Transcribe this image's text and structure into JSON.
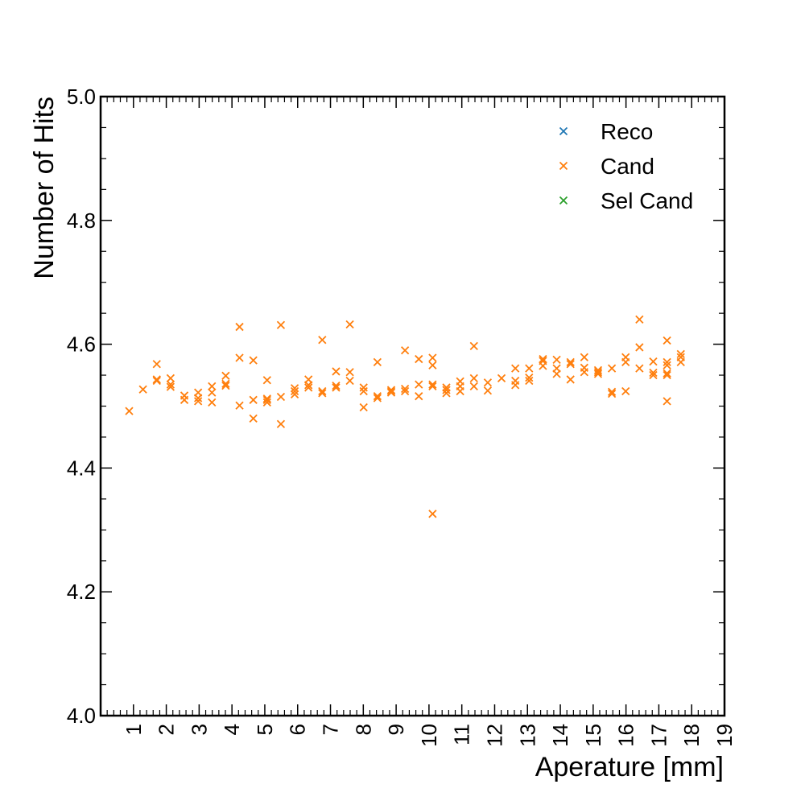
{
  "chart_data": {
    "type": "scatter",
    "xlabel": "Aperature [mm]",
    "ylabel": "Number of Hits",
    "xlim": [
      0,
      19
    ],
    "ylim": [
      4.0,
      5.0
    ],
    "x_ticks": [
      1,
      2,
      3,
      4,
      5,
      6,
      7,
      8,
      9,
      10,
      11,
      12,
      13,
      14,
      15,
      16,
      17,
      18,
      19
    ],
    "x_tick_labels": [
      "1",
      "2",
      "3",
      "4",
      "5",
      "6",
      "7",
      "8",
      "9",
      "10",
      "11",
      "12",
      "13",
      "14",
      "15",
      "16",
      "17",
      "18",
      "19"
    ],
    "y_ticks": [
      4.0,
      4.2,
      4.4,
      4.6,
      4.8,
      5.0
    ],
    "y_tick_labels": [
      "4.0",
      "4.2",
      "4.4",
      "4.6",
      "4.8",
      "5.0"
    ],
    "grid": false,
    "legend_position": "top-right",
    "marker": "x",
    "series": [
      {
        "name": "Reco",
        "color": "#1f77b4",
        "points": []
      },
      {
        "name": "Cand",
        "color": "#ff7f0e",
        "points": [
          [
            0.87,
            4.492
          ],
          [
            1.29,
            4.527
          ],
          [
            1.71,
            4.568
          ],
          [
            1.71,
            4.543
          ],
          [
            1.71,
            4.541
          ],
          [
            2.13,
            4.545
          ],
          [
            2.13,
            4.535
          ],
          [
            2.13,
            4.531
          ],
          [
            2.55,
            4.517
          ],
          [
            2.55,
            4.51
          ],
          [
            2.97,
            4.522
          ],
          [
            2.97,
            4.513
          ],
          [
            2.97,
            4.508
          ],
          [
            3.39,
            4.532
          ],
          [
            3.39,
            4.522
          ],
          [
            3.39,
            4.506
          ],
          [
            3.81,
            4.549
          ],
          [
            3.81,
            4.536
          ],
          [
            3.81,
            4.533
          ],
          [
            4.23,
            4.628
          ],
          [
            4.23,
            4.578
          ],
          [
            4.23,
            4.501
          ],
          [
            4.65,
            4.574
          ],
          [
            4.65,
            4.51
          ],
          [
            4.65,
            4.48
          ],
          [
            5.07,
            4.542
          ],
          [
            5.07,
            4.512
          ],
          [
            5.07,
            4.51
          ],
          [
            5.07,
            4.506
          ],
          [
            5.49,
            4.631
          ],
          [
            5.49,
            4.515
          ],
          [
            5.49,
            4.471
          ],
          [
            5.91,
            4.529
          ],
          [
            5.91,
            4.524
          ],
          [
            5.91,
            4.519
          ],
          [
            6.33,
            4.543
          ],
          [
            6.33,
            4.534
          ],
          [
            6.33,
            4.53
          ],
          [
            6.75,
            4.607
          ],
          [
            6.75,
            4.524
          ],
          [
            6.75,
            4.521
          ],
          [
            7.17,
            4.556
          ],
          [
            7.17,
            4.533
          ],
          [
            7.17,
            4.53
          ],
          [
            7.59,
            4.632
          ],
          [
            7.59,
            4.555
          ],
          [
            7.59,
            4.541
          ],
          [
            8.01,
            4.53
          ],
          [
            8.01,
            4.524
          ],
          [
            8.01,
            4.498
          ],
          [
            8.43,
            4.571
          ],
          [
            8.43,
            4.516
          ],
          [
            8.43,
            4.513
          ],
          [
            8.85,
            4.526
          ],
          [
            8.85,
            4.524
          ],
          [
            8.85,
            4.522
          ],
          [
            9.27,
            4.59
          ],
          [
            9.27,
            4.528
          ],
          [
            9.27,
            4.524
          ],
          [
            9.69,
            4.576
          ],
          [
            9.69,
            4.535
          ],
          [
            9.69,
            4.516
          ],
          [
            10.11,
            4.578
          ],
          [
            10.11,
            4.566
          ],
          [
            10.11,
            4.535
          ],
          [
            10.11,
            4.532
          ],
          [
            10.11,
            4.326
          ],
          [
            10.53,
            4.53
          ],
          [
            10.53,
            4.526
          ],
          [
            10.53,
            4.521
          ],
          [
            10.95,
            4.54
          ],
          [
            10.95,
            4.532
          ],
          [
            10.95,
            4.524
          ],
          [
            11.37,
            4.597
          ],
          [
            11.37,
            4.545
          ],
          [
            11.37,
            4.532
          ],
          [
            11.79,
            4.538
          ],
          [
            11.79,
            4.525
          ],
          [
            12.21,
            4.545
          ],
          [
            12.63,
            4.561
          ],
          [
            12.63,
            4.541
          ],
          [
            12.63,
            4.534
          ],
          [
            13.05,
            4.561
          ],
          [
            13.05,
            4.546
          ],
          [
            13.05,
            4.541
          ],
          [
            13.47,
            4.576
          ],
          [
            13.47,
            4.573
          ],
          [
            13.47,
            4.565
          ],
          [
            13.89,
            4.575
          ],
          [
            13.89,
            4.561
          ],
          [
            13.89,
            4.552
          ],
          [
            14.31,
            4.571
          ],
          [
            14.31,
            4.568
          ],
          [
            14.31,
            4.543
          ],
          [
            14.73,
            4.579
          ],
          [
            14.73,
            4.562
          ],
          [
            14.73,
            4.555
          ],
          [
            15.15,
            4.558
          ],
          [
            15.15,
            4.555
          ],
          [
            15.15,
            4.552
          ],
          [
            15.57,
            4.561
          ],
          [
            15.57,
            4.523
          ],
          [
            15.57,
            4.52
          ],
          [
            15.99,
            4.579
          ],
          [
            15.99,
            4.571
          ],
          [
            15.99,
            4.524
          ],
          [
            16.41,
            4.64
          ],
          [
            16.41,
            4.595
          ],
          [
            16.41,
            4.561
          ],
          [
            16.83,
            4.572
          ],
          [
            16.83,
            4.554
          ],
          [
            16.83,
            4.55
          ],
          [
            17.25,
            4.606
          ],
          [
            17.25,
            4.571
          ],
          [
            17.25,
            4.566
          ],
          [
            17.25,
            4.553
          ],
          [
            17.25,
            4.55
          ],
          [
            17.25,
            4.508
          ],
          [
            17.67,
            4.584
          ],
          [
            17.67,
            4.579
          ],
          [
            17.67,
            4.571
          ]
        ]
      },
      {
        "name": "Sel Cand",
        "color": "#2ca02c",
        "points": []
      }
    ]
  }
}
